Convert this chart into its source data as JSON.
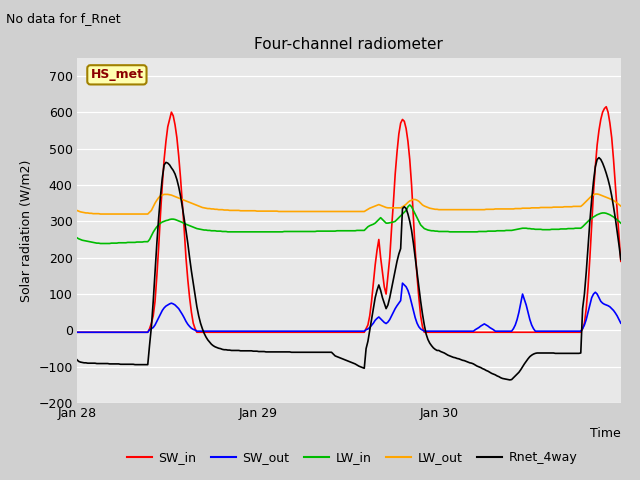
{
  "title": "Four-channel radiometer",
  "top_left_text": "No data for f_Rnet",
  "xlabel": "Time",
  "ylabel": "Solar radiation (W/m2)",
  "ylim": [
    -200,
    750
  ],
  "yticks": [
    -200,
    -100,
    0,
    100,
    200,
    300,
    400,
    500,
    600,
    700
  ],
  "xtick_labels": [
    "Jan 28",
    "Jan 29",
    "Jan 30"
  ],
  "legend_labels": [
    "SW_in",
    "SW_out",
    "LW_in",
    "LW_out",
    "Rnet_4way"
  ],
  "legend_colors": [
    "#ff0000",
    "#0000ff",
    "#00bb00",
    "#ffa500",
    "#000000"
  ],
  "inset_label": "HS_met",
  "n_points": 300,
  "SW_in": [
    -5,
    -5,
    -5,
    -5,
    -5,
    -5,
    -5,
    -5,
    -5,
    -5,
    -5,
    -5,
    -5,
    -5,
    -5,
    -5,
    -5,
    -5,
    -5,
    -5,
    -5,
    -5,
    -5,
    -5,
    -5,
    -5,
    -5,
    -5,
    -5,
    -5,
    -5,
    -5,
    -5,
    -5,
    -5,
    -5,
    -5,
    -5,
    -5,
    -5,
    5,
    20,
    40,
    80,
    150,
    230,
    320,
    400,
    470,
    520,
    560,
    580,
    600,
    590,
    565,
    530,
    480,
    420,
    350,
    280,
    200,
    140,
    90,
    50,
    20,
    5,
    -5,
    -5,
    -5,
    -5,
    -5,
    -5,
    -5,
    -5,
    -5,
    -5,
    -5,
    -5,
    -5,
    -5,
    -5,
    -5,
    -5,
    -5,
    -5,
    -5,
    -5,
    -5,
    -5,
    -5,
    -5,
    -5,
    -5,
    -5,
    -5,
    -5,
    -5,
    -5,
    -5,
    -5,
    -5,
    -5,
    -5,
    -5,
    -5,
    -5,
    -5,
    -5,
    -5,
    -5,
    -5,
    -5,
    -5,
    -5,
    -5,
    -5,
    -5,
    -5,
    -5,
    -5,
    -5,
    -5,
    -5,
    -5,
    -5,
    -5,
    -5,
    -5,
    -5,
    -5,
    -5,
    -5,
    -5,
    -5,
    -5,
    -5,
    -5,
    -5,
    -5,
    -5,
    -5,
    -5,
    -5,
    -5,
    -5,
    -5,
    -5,
    -5,
    -5,
    -5,
    -5,
    -5,
    -5,
    -5,
    -5,
    -5,
    -5,
    -5,
    -5,
    5,
    15,
    40,
    80,
    130,
    180,
    220,
    250,
    200,
    160,
    120,
    100,
    150,
    200,
    280,
    350,
    430,
    490,
    540,
    570,
    580,
    575,
    555,
    520,
    470,
    400,
    310,
    220,
    150,
    90,
    40,
    10,
    -5,
    -5,
    -5,
    -5,
    -5,
    -5,
    -5,
    -5,
    -5,
    -5,
    -5,
    -5,
    -5,
    -5,
    -5,
    -5,
    -5,
    -5,
    -5,
    -5,
    -5,
    -5,
    -5,
    -5,
    -5,
    -5,
    -5,
    -5,
    -5,
    -5,
    -5,
    -5,
    -5,
    -5,
    -5,
    -5,
    -5,
    -5,
    -5,
    -5,
    -5,
    -5,
    -5,
    -5,
    -5,
    -5,
    -5,
    -5,
    -5,
    -5,
    -5,
    -5,
    -5,
    -5,
    -5,
    -5,
    -5,
    -5,
    -5,
    -5,
    -5,
    -5,
    -5,
    -5,
    -5,
    -5,
    -5,
    -5,
    -5,
    -5,
    -5,
    -5,
    -5,
    -5,
    -5,
    -5,
    -5,
    -5,
    -5,
    -5,
    -5,
    -5,
    -5,
    -5,
    -5,
    -5,
    -5,
    5,
    20,
    60,
    120,
    200,
    290,
    380,
    450,
    510,
    550,
    580,
    600,
    610,
    615,
    600,
    570,
    530,
    470,
    400,
    330,
    260,
    190,
    120,
    70,
    30,
    10,
    -5,
    -5,
    -5,
    -5,
    -5,
    -5,
    -5,
    -5,
    -5,
    -5,
    -5,
    -5,
    -5,
    -5,
    -5
  ],
  "SW_out": [
    -5,
    -5,
    -5,
    -5,
    -5,
    -5,
    -5,
    -5,
    -5,
    -5,
    -5,
    -5,
    -5,
    -5,
    -5,
    -5,
    -5,
    -5,
    -5,
    -5,
    -5,
    -5,
    -5,
    -5,
    -5,
    -5,
    -5,
    -5,
    -5,
    -5,
    -5,
    -5,
    -5,
    -5,
    -5,
    -5,
    -5,
    -5,
    -5,
    -5,
    2,
    5,
    8,
    15,
    25,
    35,
    45,
    55,
    62,
    67,
    70,
    73,
    75,
    73,
    70,
    65,
    60,
    52,
    44,
    35,
    25,
    17,
    11,
    6,
    3,
    1,
    -2,
    -2,
    -2,
    -2,
    -2,
    -2,
    -2,
    -2,
    -2,
    -2,
    -2,
    -2,
    -2,
    -2,
    -2,
    -2,
    -2,
    -2,
    -2,
    -2,
    -2,
    -2,
    -2,
    -2,
    -2,
    -2,
    -2,
    -2,
    -2,
    -2,
    -2,
    -2,
    -2,
    -2,
    -2,
    -2,
    -2,
    -2,
    -2,
    -2,
    -2,
    -2,
    -2,
    -2,
    -2,
    -2,
    -2,
    -2,
    -2,
    -2,
    -2,
    -2,
    -2,
    -2,
    -2,
    -2,
    -2,
    -2,
    -2,
    -2,
    -2,
    -2,
    -2,
    -2,
    -2,
    -2,
    -2,
    -2,
    -2,
    -2,
    -2,
    -2,
    -2,
    -2,
    -2,
    -2,
    -2,
    -2,
    -2,
    -2,
    -2,
    -2,
    -2,
    -2,
    -2,
    -2,
    -2,
    -2,
    -2,
    -2,
    -2,
    -2,
    -2,
    2,
    4,
    8,
    14,
    20,
    28,
    33,
    37,
    32,
    27,
    22,
    19,
    23,
    30,
    40,
    50,
    60,
    68,
    75,
    82,
    130,
    125,
    120,
    110,
    95,
    75,
    55,
    35,
    20,
    10,
    4,
    1,
    -2,
    -2,
    -2,
    -2,
    -2,
    -2,
    -2,
    -2,
    -2,
    -2,
    -2,
    -2,
    -2,
    -2,
    -2,
    -2,
    -2,
    -2,
    -2,
    -2,
    -2,
    -2,
    -2,
    -2,
    -2,
    -2,
    -2,
    -2,
    2,
    5,
    8,
    12,
    15,
    18,
    15,
    12,
    8,
    5,
    2,
    -2,
    -2,
    -2,
    -2,
    -2,
    -2,
    -2,
    -2,
    -2,
    -2,
    5,
    15,
    30,
    50,
    75,
    100,
    85,
    70,
    50,
    30,
    15,
    5,
    -2,
    -2,
    -2,
    -2,
    -2,
    -2,
    -2,
    -2,
    -2,
    -2,
    -2,
    -2,
    -2,
    -2,
    -2,
    -2,
    -2,
    -2,
    -2,
    -2,
    -2,
    -2,
    -2,
    -2,
    -2,
    -2,
    5,
    15,
    30,
    50,
    70,
    90,
    100,
    105,
    100,
    90,
    80,
    75,
    72,
    70,
    68,
    65,
    60,
    55,
    48,
    40,
    30,
    20,
    12,
    6,
    2,
    -2,
    -2,
    -2,
    -2,
    -2,
    -2,
    -2,
    -2,
    -2,
    -2,
    -2,
    -2,
    -2,
    -2,
    -2,
    -2
  ],
  "LW_in": [
    255,
    252,
    250,
    248,
    247,
    246,
    245,
    244,
    243,
    242,
    241,
    240,
    240,
    239,
    239,
    239,
    239,
    239,
    239,
    240,
    240,
    240,
    240,
    241,
    241,
    241,
    241,
    241,
    242,
    242,
    242,
    242,
    242,
    243,
    243,
    243,
    243,
    244,
    244,
    244,
    250,
    260,
    270,
    278,
    285,
    290,
    295,
    298,
    300,
    302,
    303,
    305,
    306,
    306,
    305,
    303,
    301,
    299,
    297,
    294,
    292,
    290,
    288,
    286,
    284,
    282,
    280,
    279,
    278,
    277,
    276,
    276,
    275,
    275,
    274,
    274,
    274,
    273,
    273,
    273,
    272,
    272,
    272,
    271,
    271,
    271,
    271,
    271,
    271,
    271,
    271,
    271,
    271,
    271,
    271,
    271,
    271,
    271,
    271,
    271,
    271,
    271,
    271,
    271,
    271,
    271,
    271,
    271,
    271,
    271,
    271,
    271,
    271,
    271,
    272,
    272,
    272,
    272,
    272,
    272,
    272,
    272,
    272,
    272,
    272,
    272,
    272,
    272,
    272,
    272,
    272,
    272,
    273,
    273,
    273,
    273,
    273,
    273,
    273,
    273,
    273,
    273,
    273,
    274,
    274,
    274,
    274,
    274,
    274,
    274,
    274,
    274,
    274,
    274,
    275,
    275,
    275,
    275,
    275,
    280,
    285,
    288,
    290,
    292,
    295,
    300,
    305,
    310,
    305,
    300,
    295,
    295,
    296,
    297,
    298,
    300,
    305,
    310,
    315,
    320,
    325,
    330,
    340,
    345,
    340,
    330,
    320,
    310,
    300,
    290,
    285,
    280,
    278,
    276,
    275,
    274,
    274,
    273,
    273,
    272,
    272,
    272,
    272,
    272,
    272,
    271,
    271,
    271,
    271,
    271,
    271,
    271,
    271,
    271,
    271,
    271,
    271,
    271,
    271,
    271,
    271,
    272,
    272,
    272,
    272,
    272,
    273,
    273,
    273,
    273,
    273,
    274,
    274,
    274,
    274,
    274,
    275,
    275,
    275,
    275,
    276,
    277,
    278,
    279,
    280,
    281,
    281,
    281,
    280,
    280,
    279,
    279,
    278,
    278,
    278,
    278,
    277,
    277,
    277,
    277,
    277,
    278,
    278,
    278,
    278,
    278,
    279,
    279,
    279,
    279,
    280,
    280,
    280,
    280,
    281,
    281,
    281,
    281,
    285,
    290,
    295,
    300,
    305,
    308,
    312,
    315,
    318,
    320,
    322,
    323,
    323,
    322,
    320,
    318,
    315,
    312,
    308,
    304,
    300,
    295,
    290,
    285,
    280,
    276,
    272,
    270,
    268,
    267,
    266,
    265,
    265,
    265,
    264,
    264,
    264,
    264,
    264,
    264,
    264
  ],
  "LW_out": [
    330,
    328,
    326,
    325,
    324,
    323,
    323,
    322,
    322,
    321,
    321,
    321,
    321,
    320,
    320,
    320,
    320,
    320,
    320,
    320,
    320,
    320,
    320,
    320,
    320,
    320,
    320,
    320,
    320,
    320,
    320,
    320,
    320,
    320,
    320,
    320,
    320,
    320,
    320,
    320,
    325,
    330,
    340,
    350,
    358,
    365,
    370,
    372,
    374,
    374,
    374,
    373,
    372,
    370,
    368,
    366,
    364,
    362,
    360,
    358,
    356,
    354,
    352,
    350,
    348,
    346,
    344,
    342,
    340,
    338,
    337,
    336,
    335,
    335,
    334,
    334,
    333,
    333,
    332,
    332,
    332,
    331,
    331,
    331,
    330,
    330,
    330,
    330,
    330,
    330,
    329,
    329,
    329,
    329,
    329,
    329,
    329,
    329,
    329,
    328,
    328,
    328,
    328,
    328,
    328,
    328,
    328,
    328,
    328,
    328,
    328,
    327,
    327,
    327,
    327,
    327,
    327,
    327,
    327,
    327,
    327,
    327,
    327,
    327,
    327,
    327,
    327,
    327,
    327,
    327,
    327,
    327,
    327,
    327,
    327,
    327,
    327,
    327,
    327,
    327,
    327,
    327,
    327,
    327,
    327,
    327,
    327,
    327,
    327,
    327,
    327,
    327,
    327,
    327,
    327,
    327,
    327,
    327,
    327,
    330,
    333,
    336,
    338,
    340,
    342,
    344,
    346,
    344,
    342,
    340,
    338,
    337,
    337,
    337,
    337,
    337,
    337,
    337,
    337,
    340,
    343,
    347,
    352,
    356,
    358,
    360,
    360,
    358,
    355,
    350,
    345,
    342,
    340,
    338,
    336,
    335,
    334,
    333,
    333,
    332,
    332,
    332,
    332,
    332,
    332,
    332,
    332,
    332,
    332,
    332,
    332,
    332,
    332,
    332,
    332,
    332,
    332,
    332,
    332,
    332,
    332,
    332,
    332,
    332,
    332,
    333,
    333,
    333,
    333,
    333,
    334,
    334,
    334,
    334,
    334,
    334,
    334,
    334,
    334,
    334,
    334,
    335,
    335,
    335,
    335,
    336,
    336,
    336,
    336,
    336,
    337,
    337,
    337,
    337,
    337,
    338,
    338,
    338,
    338,
    338,
    338,
    338,
    339,
    339,
    339,
    339,
    339,
    339,
    340,
    340,
    340,
    340,
    340,
    341,
    341,
    341,
    341,
    341,
    345,
    350,
    355,
    360,
    365,
    370,
    373,
    375,
    375,
    374,
    372,
    370,
    368,
    366,
    364,
    362,
    360,
    357,
    354,
    350,
    346,
    342,
    338,
    335,
    332,
    330,
    328,
    326,
    325,
    324,
    323,
    322,
    321,
    321,
    320,
    320,
    320,
    320,
    320,
    320,
    320
  ],
  "Rnet_4way": [
    -80,
    -85,
    -87,
    -88,
    -89,
    -89,
    -90,
    -90,
    -90,
    -90,
    -90,
    -91,
    -91,
    -91,
    -91,
    -91,
    -91,
    -91,
    -92,
    -92,
    -92,
    -92,
    -92,
    -92,
    -93,
    -93,
    -93,
    -93,
    -93,
    -93,
    -93,
    -93,
    -94,
    -94,
    -94,
    -94,
    -94,
    -94,
    -94,
    -94,
    -40,
    10,
    80,
    160,
    240,
    310,
    370,
    420,
    455,
    462,
    460,
    455,
    447,
    440,
    430,
    415,
    395,
    370,
    340,
    308,
    275,
    240,
    200,
    163,
    130,
    95,
    65,
    40,
    20,
    5,
    -8,
    -18,
    -26,
    -32,
    -38,
    -42,
    -45,
    -47,
    -49,
    -50,
    -52,
    -53,
    -53,
    -54,
    -54,
    -55,
    -55,
    -55,
    -55,
    -55,
    -56,
    -56,
    -56,
    -56,
    -56,
    -56,
    -56,
    -57,
    -57,
    -57,
    -58,
    -58,
    -58,
    -58,
    -59,
    -59,
    -59,
    -59,
    -59,
    -59,
    -59,
    -59,
    -59,
    -59,
    -59,
    -59,
    -59,
    -59,
    -60,
    -60,
    -60,
    -60,
    -60,
    -60,
    -60,
    -60,
    -60,
    -60,
    -60,
    -60,
    -60,
    -60,
    -60,
    -60,
    -60,
    -60,
    -60,
    -60,
    -60,
    -60,
    -60,
    -65,
    -70,
    -72,
    -74,
    -76,
    -78,
    -80,
    -82,
    -84,
    -86,
    -88,
    -90,
    -92,
    -95,
    -98,
    -100,
    -102,
    -104,
    -50,
    -30,
    0,
    30,
    60,
    90,
    110,
    125,
    110,
    90,
    75,
    60,
    70,
    90,
    115,
    140,
    165,
    190,
    210,
    225,
    335,
    340,
    335,
    320,
    300,
    275,
    240,
    200,
    160,
    120,
    80,
    45,
    15,
    -10,
    -25,
    -35,
    -42,
    -48,
    -52,
    -55,
    -55,
    -58,
    -60,
    -62,
    -65,
    -68,
    -70,
    -72,
    -74,
    -75,
    -77,
    -78,
    -80,
    -82,
    -83,
    -85,
    -87,
    -89,
    -90,
    -92,
    -95,
    -98,
    -100,
    -102,
    -105,
    -107,
    -110,
    -112,
    -115,
    -118,
    -120,
    -122,
    -125,
    -127,
    -130,
    -132,
    -133,
    -134,
    -135,
    -136,
    -135,
    -130,
    -125,
    -120,
    -115,
    -108,
    -100,
    -92,
    -85,
    -78,
    -72,
    -68,
    -65,
    -63,
    -62,
    -62,
    -62,
    -62,
    -62,
    -62,
    -62,
    -62,
    -62,
    -62,
    -63,
    -63,
    -63,
    -63,
    -63,
    -63,
    -63,
    -63,
    -63,
    -63,
    -63,
    -63,
    -63,
    -63,
    -62,
    60,
    100,
    160,
    230,
    300,
    360,
    410,
    450,
    470,
    475,
    470,
    460,
    447,
    432,
    415,
    395,
    370,
    340,
    308,
    272,
    235,
    195,
    155,
    118,
    85,
    60,
    42,
    28,
    18,
    10,
    5,
    0,
    -5,
    -10,
    -14,
    -17,
    -20,
    -22,
    -24,
    -24,
    -24
  ]
}
